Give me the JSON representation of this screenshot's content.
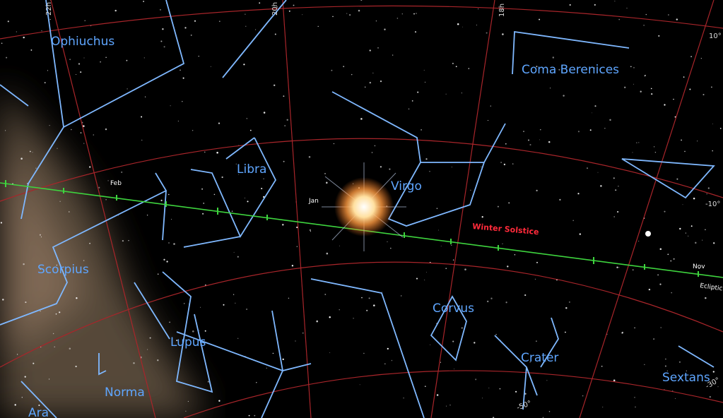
{
  "grid_labels": [
    "22h",
    "20h",
    "18h",
    "10°",
    "-10°",
    "-30°",
    "-50°"
  ],
  "constellations": [
    "Ophiuchus",
    "Coma Berenices",
    "Libra",
    "Virgo",
    "Scorpius",
    "Corvus",
    "Lupus",
    "Crater",
    "Norma",
    "Sextans",
    "Ara"
  ],
  "ecliptic": {
    "name": "Ecliptic",
    "months": [
      "Feb",
      "Jan",
      "Nov"
    ],
    "solstice": "Winter Solstice"
  }
}
